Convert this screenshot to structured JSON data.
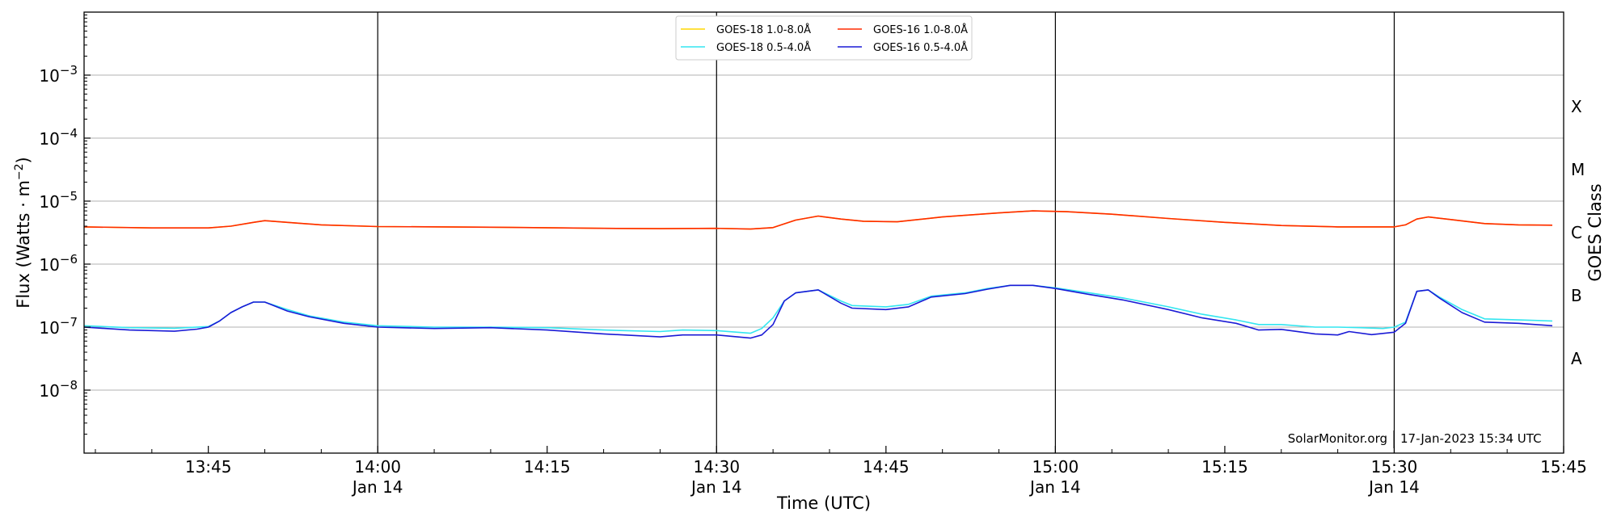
{
  "chart_data": {
    "type": "line",
    "y_scale": "log",
    "ylim": [
      1e-09,
      0.01
    ],
    "xlim": [
      "13:34",
      "15:45"
    ],
    "xlabel": "Time (UTC)",
    "ylabel": "Flux (Watts · m",
    "ylabel_superscript": "−2",
    "ylabel_close": ")",
    "right_axis_label": "GOES Class",
    "x_ticks": [
      {
        "time": "13:45",
        "label": "13:45",
        "date": ""
      },
      {
        "time": "14:00",
        "label": "14:00",
        "date": "Jan 14"
      },
      {
        "time": "14:15",
        "label": "14:15",
        "date": ""
      },
      {
        "time": "14:30",
        "label": "14:30",
        "date": "Jan 14"
      },
      {
        "time": "14:45",
        "label": "14:45",
        "date": ""
      },
      {
        "time": "15:00",
        "label": "15:00",
        "date": "Jan 14"
      },
      {
        "time": "15:15",
        "label": "15:15",
        "date": ""
      },
      {
        "time": "15:30",
        "label": "15:30",
        "date": "Jan 14"
      },
      {
        "time": "15:45",
        "label": "15:45",
        "date": ""
      }
    ],
    "y_ticks": [
      {
        "value": 1e-08,
        "mantissa": "10",
        "exponent": "−8"
      },
      {
        "value": 1e-07,
        "mantissa": "10",
        "exponent": "−7"
      },
      {
        "value": 1e-06,
        "mantissa": "10",
        "exponent": "−6"
      },
      {
        "value": 1e-05,
        "mantissa": "10",
        "exponent": "−5"
      },
      {
        "value": 0.0001,
        "mantissa": "10",
        "exponent": "−4"
      },
      {
        "value": 0.001,
        "mantissa": "10",
        "exponent": "−3"
      }
    ],
    "class_labels": [
      {
        "label": "A",
        "value": 3.16e-08
      },
      {
        "label": "B",
        "value": 3.16e-07
      },
      {
        "label": "C",
        "value": 3.16e-06
      },
      {
        "label": "M",
        "value": 3.16e-05
      },
      {
        "label": "X",
        "value": 0.000316
      }
    ],
    "vertical_lines": [
      "14:00",
      "14:30",
      "15:00",
      "15:30"
    ],
    "grid": "horizontal at each decade",
    "legend": {
      "placement": "top-center",
      "entries": [
        {
          "label": "GOES-18 1.0-8.0Å",
          "color": "#ffd700"
        },
        {
          "label": "GOES-16 1.0-8.0Å",
          "color": "#ff2a00"
        },
        {
          "label": "GOES-18 0.5-4.0Å",
          "color": "#33e6f0"
        },
        {
          "label": "GOES-16 0.5-4.0Å",
          "color": "#1a1ad6"
        }
      ]
    },
    "credit": {
      "left": "SolarMonitor.org",
      "right": "17-Jan-2023 15:34 UTC"
    },
    "series": [
      {
        "name": "GOES-18 1.0-8.0Å",
        "color": "#ffd700",
        "points": [
          [
            "13:34",
            3.9e-06
          ],
          [
            "13:40",
            3.75e-06
          ],
          [
            "13:45",
            3.75e-06
          ],
          [
            "13:47",
            4e-06
          ],
          [
            "13:49",
            4.6e-06
          ],
          [
            "13:50",
            4.9e-06
          ],
          [
            "13:52",
            4.6e-06
          ],
          [
            "13:55",
            4.2e-06
          ],
          [
            "14:00",
            3.95e-06
          ],
          [
            "14:10",
            3.85e-06
          ],
          [
            "14:20",
            3.7e-06
          ],
          [
            "14:25",
            3.65e-06
          ],
          [
            "14:30",
            3.7e-06
          ],
          [
            "14:33",
            3.6e-06
          ],
          [
            "14:35",
            3.8e-06
          ],
          [
            "14:37",
            5e-06
          ],
          [
            "14:39",
            5.8e-06
          ],
          [
            "14:41",
            5.2e-06
          ],
          [
            "14:43",
            4.8e-06
          ],
          [
            "14:46",
            4.7e-06
          ],
          [
            "14:50",
            5.6e-06
          ],
          [
            "14:55",
            6.5e-06
          ],
          [
            "14:58",
            7e-06
          ],
          [
            "15:01",
            6.8e-06
          ],
          [
            "15:05",
            6.2e-06
          ],
          [
            "15:10",
            5.3e-06
          ],
          [
            "15:15",
            4.6e-06
          ],
          [
            "15:20",
            4.1e-06
          ],
          [
            "15:25",
            3.9e-06
          ],
          [
            "15:30",
            3.9e-06
          ],
          [
            "15:31",
            4.2e-06
          ],
          [
            "15:32",
            5.2e-06
          ],
          [
            "15:33",
            5.6e-06
          ],
          [
            "15:35",
            5.1e-06
          ],
          [
            "15:38",
            4.4e-06
          ],
          [
            "15:41",
            4.2e-06
          ],
          [
            "15:44",
            4.15e-06
          ]
        ]
      },
      {
        "name": "GOES-16 1.0-8.0Å",
        "color": "#ff2a00",
        "points": [
          [
            "13:34",
            3.9e-06
          ],
          [
            "13:40",
            3.75e-06
          ],
          [
            "13:45",
            3.75e-06
          ],
          [
            "13:47",
            4e-06
          ],
          [
            "13:49",
            4.6e-06
          ],
          [
            "13:50",
            4.9e-06
          ],
          [
            "13:52",
            4.6e-06
          ],
          [
            "13:55",
            4.2e-06
          ],
          [
            "14:00",
            3.95e-06
          ],
          [
            "14:10",
            3.85e-06
          ],
          [
            "14:20",
            3.7e-06
          ],
          [
            "14:25",
            3.65e-06
          ],
          [
            "14:30",
            3.7e-06
          ],
          [
            "14:33",
            3.6e-06
          ],
          [
            "14:35",
            3.8e-06
          ],
          [
            "14:37",
            5e-06
          ],
          [
            "14:39",
            5.8e-06
          ],
          [
            "14:41",
            5.2e-06
          ],
          [
            "14:43",
            4.8e-06
          ],
          [
            "14:46",
            4.7e-06
          ],
          [
            "14:50",
            5.6e-06
          ],
          [
            "14:55",
            6.5e-06
          ],
          [
            "14:58",
            7e-06
          ],
          [
            "15:01",
            6.8e-06
          ],
          [
            "15:05",
            6.2e-06
          ],
          [
            "15:10",
            5.3e-06
          ],
          [
            "15:15",
            4.6e-06
          ],
          [
            "15:20",
            4.1e-06
          ],
          [
            "15:25",
            3.9e-06
          ],
          [
            "15:30",
            3.9e-06
          ],
          [
            "15:31",
            4.2e-06
          ],
          [
            "15:32",
            5.2e-06
          ],
          [
            "15:33",
            5.6e-06
          ],
          [
            "15:35",
            5.1e-06
          ],
          [
            "15:38",
            4.4e-06
          ],
          [
            "15:41",
            4.2e-06
          ],
          [
            "15:44",
            4.15e-06
          ]
        ]
      },
      {
        "name": "GOES-18 0.5-4.0Å",
        "color": "#33e6f0",
        "points": [
          [
            "13:34",
            1.05e-07
          ],
          [
            "13:38",
            9.8e-08
          ],
          [
            "13:42",
            9.6e-08
          ],
          [
            "13:45",
            1.02e-07
          ],
          [
            "13:46",
            1.25e-07
          ],
          [
            "13:47",
            1.7e-07
          ],
          [
            "13:48",
            2.1e-07
          ],
          [
            "13:49",
            2.5e-07
          ],
          [
            "13:50",
            2.5e-07
          ],
          [
            "13:52",
            1.9e-07
          ],
          [
            "13:54",
            1.5e-07
          ],
          [
            "13:57",
            1.2e-07
          ],
          [
            "14:00",
            1.05e-07
          ],
          [
            "14:05",
            1e-07
          ],
          [
            "14:10",
            1e-07
          ],
          [
            "14:15",
            9.8e-08
          ],
          [
            "14:20",
            9e-08
          ],
          [
            "14:25",
            8.5e-08
          ],
          [
            "14:27",
            9e-08
          ],
          [
            "14:30",
            8.8e-08
          ],
          [
            "14:33",
            8e-08
          ],
          [
            "14:34",
            9.5e-08
          ],
          [
            "14:35",
            1.4e-07
          ],
          [
            "14:36",
            2.6e-07
          ],
          [
            "14:37",
            3.5e-07
          ],
          [
            "14:39",
            3.9e-07
          ],
          [
            "14:41",
            2.6e-07
          ],
          [
            "14:42",
            2.2e-07
          ],
          [
            "14:45",
            2.1e-07
          ],
          [
            "14:47",
            2.3e-07
          ],
          [
            "14:49",
            3.1e-07
          ],
          [
            "14:52",
            3.5e-07
          ],
          [
            "14:54",
            4.1e-07
          ],
          [
            "14:56",
            4.6e-07
          ],
          [
            "14:58",
            4.6e-07
          ],
          [
            "15:00",
            4.2e-07
          ],
          [
            "15:03",
            3.5e-07
          ],
          [
            "15:06",
            2.9e-07
          ],
          [
            "15:10",
            2.1e-07
          ],
          [
            "15:13",
            1.6e-07
          ],
          [
            "15:16",
            1.3e-07
          ],
          [
            "15:18",
            1.1e-07
          ],
          [
            "15:20",
            1.1e-07
          ],
          [
            "15:23",
            1e-07
          ],
          [
            "15:25",
            1e-07
          ],
          [
            "15:27",
            9.8e-08
          ],
          [
            "15:29",
            9.5e-08
          ],
          [
            "15:30",
            1e-07
          ],
          [
            "15:31",
            1.2e-07
          ],
          [
            "15:32",
            3.7e-07
          ],
          [
            "15:33",
            3.9e-07
          ],
          [
            "15:34",
            3e-07
          ],
          [
            "15:36",
            1.9e-07
          ],
          [
            "15:38",
            1.35e-07
          ],
          [
            "15:41",
            1.3e-07
          ],
          [
            "15:44",
            1.25e-07
          ]
        ]
      },
      {
        "name": "GOES-16 0.5-4.0Å",
        "color": "#1a1ad6",
        "points": [
          [
            "13:34",
            1e-07
          ],
          [
            "13:38",
            9e-08
          ],
          [
            "13:42",
            8.6e-08
          ],
          [
            "13:44",
            9.3e-08
          ],
          [
            "13:45",
            1e-07
          ],
          [
            "13:46",
            1.25e-07
          ],
          [
            "13:47",
            1.7e-07
          ],
          [
            "13:48",
            2.1e-07
          ],
          [
            "13:49",
            2.5e-07
          ],
          [
            "13:50",
            2.5e-07
          ],
          [
            "13:52",
            1.8e-07
          ],
          [
            "13:54",
            1.45e-07
          ],
          [
            "13:57",
            1.15e-07
          ],
          [
            "14:00",
            1e-07
          ],
          [
            "14:05",
            9.5e-08
          ],
          [
            "14:10",
            9.8e-08
          ],
          [
            "14:15",
            9e-08
          ],
          [
            "14:20",
            7.8e-08
          ],
          [
            "14:25",
            7e-08
          ],
          [
            "14:27",
            7.5e-08
          ],
          [
            "14:30",
            7.5e-08
          ],
          [
            "14:33",
            6.7e-08
          ],
          [
            "14:34",
            7.5e-08
          ],
          [
            "14:35",
            1.1e-07
          ],
          [
            "14:36",
            2.6e-07
          ],
          [
            "14:37",
            3.5e-07
          ],
          [
            "14:39",
            3.9e-07
          ],
          [
            "14:41",
            2.4e-07
          ],
          [
            "14:42",
            2e-07
          ],
          [
            "14:45",
            1.9e-07
          ],
          [
            "14:47",
            2.1e-07
          ],
          [
            "14:49",
            3e-07
          ],
          [
            "14:52",
            3.4e-07
          ],
          [
            "14:54",
            4e-07
          ],
          [
            "14:56",
            4.6e-07
          ],
          [
            "14:58",
            4.6e-07
          ],
          [
            "15:00",
            4.1e-07
          ],
          [
            "15:03",
            3.3e-07
          ],
          [
            "15:06",
            2.7e-07
          ],
          [
            "15:10",
            1.9e-07
          ],
          [
            "15:13",
            1.4e-07
          ],
          [
            "15:16",
            1.15e-07
          ],
          [
            "15:18",
            9e-08
          ],
          [
            "15:20",
            9.2e-08
          ],
          [
            "15:23",
            7.8e-08
          ],
          [
            "15:25",
            7.5e-08
          ],
          [
            "15:26",
            8.5e-08
          ],
          [
            "15:28",
            7.6e-08
          ],
          [
            "15:30",
            8.3e-08
          ],
          [
            "15:31",
            1.15e-07
          ],
          [
            "15:32",
            3.7e-07
          ],
          [
            "15:33",
            3.9e-07
          ],
          [
            "15:34",
            2.9e-07
          ],
          [
            "15:36",
            1.7e-07
          ],
          [
            "15:38",
            1.2e-07
          ],
          [
            "15:41",
            1.15e-07
          ],
          [
            "15:44",
            1.05e-07
          ]
        ]
      }
    ]
  }
}
